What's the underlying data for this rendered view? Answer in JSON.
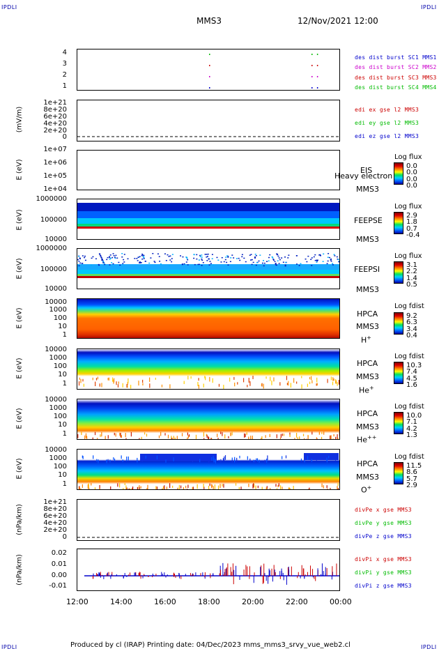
{
  "corners": {
    "tl": "IPDLI",
    "tr": "IPDLI",
    "bl": "IPDLI",
    "br": "IPDLI"
  },
  "header": {
    "mission": "MMS3",
    "datetime": "12/Nov/2021 12:00"
  },
  "footer": {
    "text": "Produced by cl (IRAP)    Printing date: 04/Dec/2023    mms_mms3_srvy_vue_web2.cl"
  },
  "colors": {
    "blue": "#0000cc",
    "magenta": "#cc00cc",
    "red": "#cc0000",
    "green": "#00bb00"
  },
  "chart_data": [
    {
      "type": "scatter",
      "name": "burst",
      "yticks": [
        "4",
        "3",
        "2",
        "1"
      ],
      "legend": [
        {
          "label": "des dist burst SC1 MMS1",
          "color": "#0000cc"
        },
        {
          "label": "des dist burst SC2 MMS2",
          "color": "#cc00cc"
        },
        {
          "label": "des dist burst SC3 MMS3",
          "color": "#cc0000"
        },
        {
          "label": "des dist burst SC4 MMS4",
          "color": "#00bb00"
        }
      ],
      "marks_x": [
        "18:00",
        "22:40",
        "22:55"
      ]
    },
    {
      "type": "line",
      "name": "edi",
      "ylabel": "(mV/m)",
      "yticks": [
        "1e+21",
        "8e+20",
        "6e+20",
        "4e+20",
        "2e+20",
        "0"
      ],
      "legend": [
        {
          "label": "edi ex gse l2 MMS3",
          "color": "#cc0000"
        },
        {
          "label": "edi ey gse l2 MMS3",
          "color": "#00bb00"
        },
        {
          "label": "edi ez gse l2 MMS3",
          "color": "#0000cc"
        }
      ]
    },
    {
      "type": "heatmap",
      "name": "eis",
      "ylabel": "E (eV)",
      "ylog": true,
      "yticks": [
        "1e+07",
        "1e+06",
        "1e+05",
        "1e+04"
      ],
      "labels": [
        "EIS",
        "MMS3"
      ],
      "overlay": "Heavy electron to",
      "cbar_title": "Log flux",
      "cbar": [
        "0.0",
        "0.0",
        "0.0",
        "0.0"
      ]
    },
    {
      "type": "heatmap",
      "name": "feepse",
      "ylabel": "E (eV)",
      "ylog": true,
      "yticks": [
        "1000000",
        "100000",
        "10000"
      ],
      "labels": [
        "FEEPSE",
        "MMS3"
      ],
      "cbar_title": "Log flux",
      "cbar": [
        "2.9",
        "1.8",
        "0.7",
        "-0.4"
      ]
    },
    {
      "type": "heatmap",
      "name": "feepsi",
      "ylabel": "E (eV)",
      "ylog": true,
      "yticks": [
        "1000000",
        "100000",
        "10000"
      ],
      "labels": [
        "FEEPSI",
        "MMS3"
      ],
      "cbar_title": "Log flux",
      "cbar": [
        "3.1",
        "2.2",
        "1.4",
        "0.5"
      ]
    },
    {
      "type": "heatmap",
      "name": "hpca-h",
      "ylabel": "E (eV)",
      "ylog": true,
      "yticks": [
        "10000",
        "1000",
        "100",
        "10",
        "1"
      ],
      "labels": [
        "HPCA",
        "MMS3"
      ],
      "species": "H",
      "charge": "+",
      "cbar_title": "Log fdist",
      "cbar": [
        "9.2",
        "6.3",
        "3.4",
        "0.4"
      ]
    },
    {
      "type": "heatmap",
      "name": "hpca-he",
      "ylabel": "E (eV)",
      "ylog": true,
      "yticks": [
        "10000",
        "1000",
        "100",
        "10",
        "1"
      ],
      "labels": [
        "HPCA",
        "MMS3"
      ],
      "species": "He",
      "charge": "+",
      "cbar_title": "Log fdist",
      "cbar": [
        "10.3",
        "7.4",
        "4.5",
        "1.6"
      ]
    },
    {
      "type": "heatmap",
      "name": "hpca-he2",
      "ylabel": "E (eV)",
      "ylog": true,
      "yticks": [
        "10000",
        "1000",
        "100",
        "10",
        "1"
      ],
      "labels": [
        "HPCA",
        "MMS3"
      ],
      "species": "He",
      "charge": "++",
      "cbar_title": "Log fdist",
      "cbar": [
        "10.0",
        "7.1",
        "4.2",
        "1.3"
      ]
    },
    {
      "type": "heatmap",
      "name": "hpca-o",
      "ylabel": "E (eV)",
      "ylog": true,
      "yticks": [
        "10000",
        "1000",
        "100",
        "10",
        "1"
      ],
      "labels": [
        "HPCA",
        "MMS3"
      ],
      "species": "O",
      "charge": "+",
      "cbar_title": "Log fdist",
      "cbar": [
        "11.5",
        "8.6",
        "5.7",
        "2.9"
      ]
    },
    {
      "type": "line",
      "name": "divpe",
      "ylabel": "(nPa/km)",
      "yticks": [
        "1e+21",
        "8e+20",
        "6e+20",
        "4e+20",
        "2e+20",
        "0"
      ],
      "legend": [
        {
          "label": "divPe x gse MMS3",
          "color": "#cc0000"
        },
        {
          "label": "divPe y gse MMS3",
          "color": "#00bb00"
        },
        {
          "label": "divPe z gse MMS3",
          "color": "#0000cc"
        }
      ]
    },
    {
      "type": "line",
      "name": "divpi",
      "ylabel": "(nPa/km)",
      "ylim": [
        -0.015,
        0.025
      ],
      "yticks": [
        "0.02",
        "0.01",
        "0.00",
        "-0.01"
      ],
      "legend": [
        {
          "label": "divPi x gse MMS3",
          "color": "#cc0000"
        },
        {
          "label": "divPi y gse MMS3",
          "color": "#00bb00"
        },
        {
          "label": "divPi z gse MMS3",
          "color": "#0000cc"
        }
      ]
    }
  ],
  "xaxis": {
    "ticks": [
      "12:00",
      "14:00",
      "16:00",
      "18:00",
      "20:00",
      "22:00",
      "00:00"
    ]
  }
}
